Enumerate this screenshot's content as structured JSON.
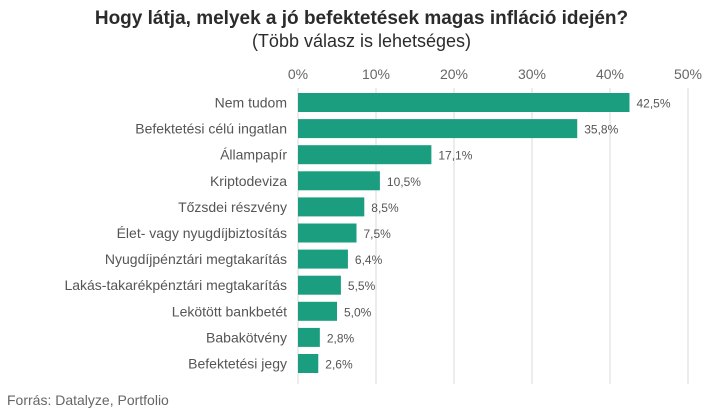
{
  "chart_data": {
    "type": "bar",
    "orientation": "horizontal",
    "title": "Hogy látja, melyek a jó befektetések magas infláció idején?",
    "subtitle": "(Több válasz is lehetséges)",
    "categories": [
      "Nem tudom",
      "Befektetési célú ingatlan",
      "Állampapír",
      "Kriptodeviza",
      "Tőzsdei részvény",
      "Élet- vagy nyugdíjbiztosítás",
      "Nyugdíjpénztári megtakarítás",
      "Lakás-takarékpénztári megtakarítás",
      "Lekötött bankbetét",
      "Babakötvény",
      "Befektetési jegy"
    ],
    "values": [
      42.5,
      35.8,
      17.1,
      10.5,
      8.5,
      7.5,
      6.4,
      5.5,
      5.0,
      2.8,
      2.6
    ],
    "value_labels": [
      "42,5%",
      "35,8%",
      "17,1%",
      "10,5%",
      "8,5%",
      "7,5%",
      "6,4%",
      "5,5%",
      "5,0%",
      "2,8%",
      "2,6%"
    ],
    "xticks": [
      "0%",
      "10%",
      "20%",
      "30%",
      "40%",
      "50%"
    ],
    "xlim": [
      0,
      50
    ],
    "axis_position": "top",
    "grid": true,
    "bar_color": "#1a9e7f",
    "grid_color": "#d9d9d9",
    "label_color": "#555555"
  },
  "source": "Forrás: Datalyze, Portfolio"
}
